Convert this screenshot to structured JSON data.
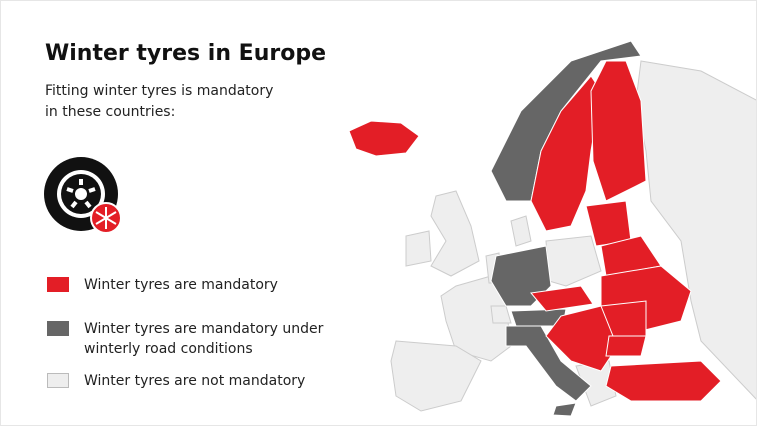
{
  "header": {
    "title": "Winter tyres in Europe",
    "subtitle_lines": [
      "Fitting winter tyres is mandatory",
      "in these countries:"
    ]
  },
  "legend": {
    "items": [
      {
        "label": "Winter tyres are mandatory",
        "color": "#e31e26"
      },
      {
        "label": "Winter tyres are mandatory under winterly road conditions",
        "color": "#666666"
      },
      {
        "label": "Winter tyres are not mandatory",
        "color": "#eeeeee"
      }
    ]
  }
}
